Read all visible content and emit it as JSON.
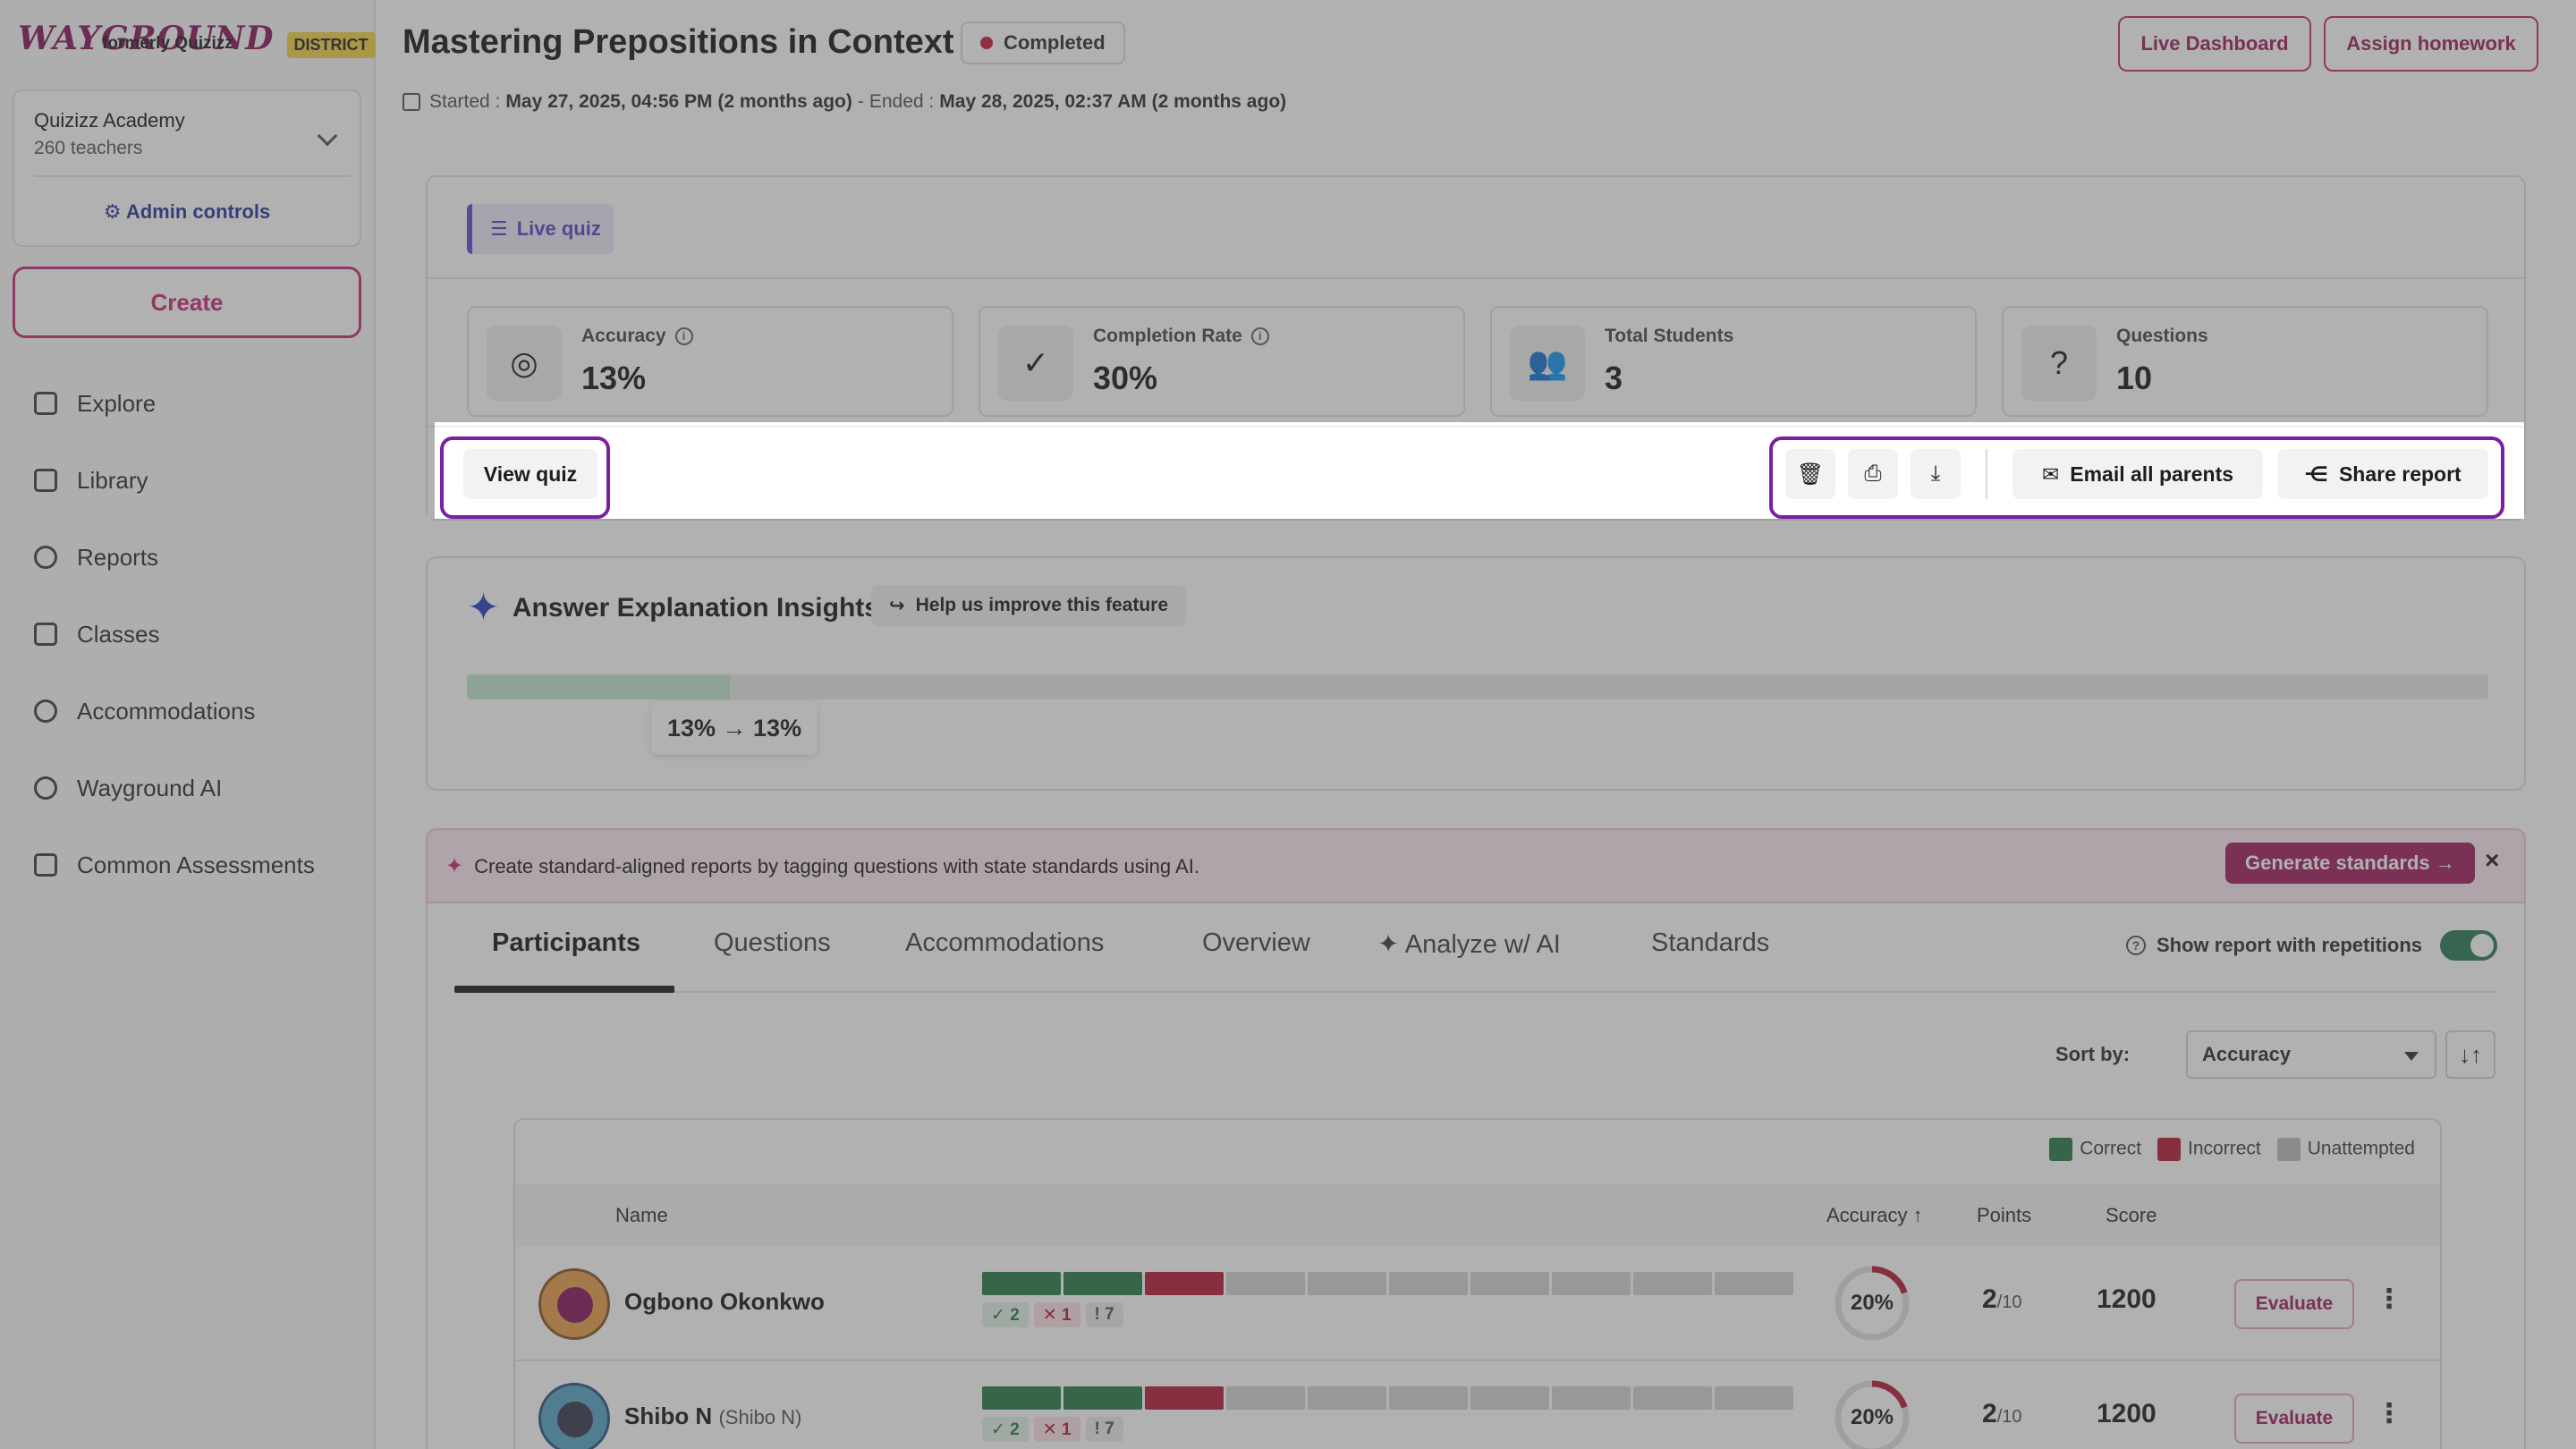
{
  "brand": {
    "logo": "WAYGROUND",
    "sub": "formerly Quizizz",
    "badge": "DISTRICT"
  },
  "org": {
    "name": "Quizizz Academy",
    "count": "260 teachers",
    "admin": "Admin controls"
  },
  "create_label": "Create",
  "nav": [
    {
      "label": "Explore",
      "icon": "home-icon"
    },
    {
      "label": "Library",
      "icon": "book-icon"
    },
    {
      "label": "Reports",
      "icon": "chart-icon"
    },
    {
      "label": "Classes",
      "icon": "classes-icon"
    },
    {
      "label": "Accommodations",
      "icon": "accommodations-icon"
    },
    {
      "label": "Wayground AI",
      "icon": "sparkle-icon"
    },
    {
      "label": "Common Assessments",
      "icon": "clipboard-icon"
    }
  ],
  "header": {
    "title": "Mastering Prepositions in Context",
    "status": "Completed",
    "live_dashboard": "Live Dashboard",
    "assign_homework": "Assign homework",
    "started_label": "Started :",
    "started_value": "May 27, 2025, 04:56 PM (2 months ago)",
    "sep": "-",
    "ended_label": "Ended :",
    "ended_value": "May 28, 2025, 02:37 AM (2 months ago)"
  },
  "summary": {
    "mode_chip": "Live quiz",
    "stats": [
      {
        "label": "Accuracy",
        "value": "13%",
        "icon": "target-icon",
        "info": true
      },
      {
        "label": "Completion Rate",
        "value": "30%",
        "icon": "check-circle-icon",
        "info": true
      },
      {
        "label": "Total Students",
        "value": "3",
        "icon": "students-icon",
        "info": false
      },
      {
        "label": "Questions",
        "value": "10",
        "icon": "question-icon",
        "info": false
      }
    ],
    "view_quiz": "View quiz",
    "email_parents": "Email all parents",
    "share_report": "Share report"
  },
  "insights": {
    "title": "Answer Explanation Insights",
    "help": "Help us improve this feature",
    "progress_fraction": 0.13,
    "bar_label": "13% → 13%"
  },
  "banner": {
    "text": "Create standard-aligned reports by tagging questions with state standards using AI.",
    "button": "Generate standards →",
    "close": "×"
  },
  "tabs": [
    {
      "label": "Participants",
      "active": true
    },
    {
      "label": "Questions",
      "active": false
    },
    {
      "label": "Accommodations",
      "active": false
    },
    {
      "label": "Overview",
      "active": false
    },
    {
      "label": "Analyze w/ AI",
      "active": false
    },
    {
      "label": "Standards",
      "active": false
    }
  ],
  "repetitions_label": "Show report with repetitions",
  "sort": {
    "label": "Sort by:",
    "value": "Accuracy",
    "direction": "↓↑"
  },
  "legend": {
    "correct": "Correct",
    "incorrect": "Incorrect",
    "unattempted": "Unattempted"
  },
  "colors": {
    "correct": "#2e7d4f",
    "incorrect": "#b5203a",
    "unattempted": "#d5d5d5",
    "brand": "#a0235f"
  },
  "table_headers": {
    "name": "Name",
    "accuracy": "Accuracy ↑",
    "points": "Points",
    "score": "Score"
  },
  "participants": [
    {
      "name": "Ogbono Okonkwo",
      "nickname": "",
      "answers": [
        "c",
        "c",
        "i",
        "u",
        "u",
        "u",
        "u",
        "u",
        "u",
        "u"
      ],
      "correct": "✓ 2",
      "incorrect": "✕ 1",
      "unattempted": "! 7",
      "accuracy": "20%",
      "accuracy_fraction": 0.2,
      "points": "2",
      "points_total": "/10",
      "score": "1200",
      "evaluate": "Evaluate"
    },
    {
      "name": "Shibo N",
      "nickname": "(Shibo N)",
      "answers": [
        "c",
        "c",
        "i",
        "u",
        "u",
        "u",
        "u",
        "u",
        "u",
        "u"
      ],
      "correct": "✓ 2",
      "incorrect": "✕ 1",
      "unattempted": "! 7",
      "accuracy": "20%",
      "accuracy_fraction": 0.2,
      "points": "2",
      "points_total": "/10",
      "score": "1200",
      "evaluate": "Evaluate"
    }
  ]
}
